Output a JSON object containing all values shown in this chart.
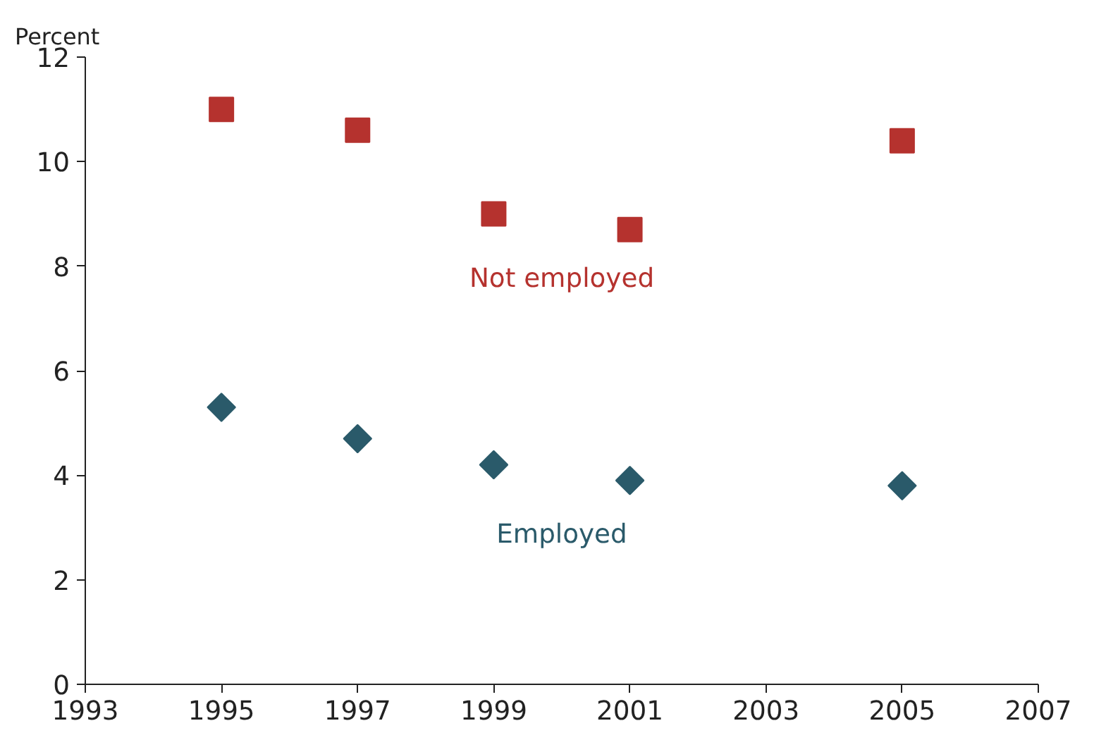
{
  "chart_data": {
    "type": "scatter",
    "ylabel": "Percent",
    "x": [
      1995,
      1997,
      1999,
      2001,
      2005
    ],
    "series": [
      {
        "name": "Not employed",
        "color": "#b5322e",
        "marker": "square",
        "values": [
          11.0,
          10.6,
          9.0,
          8.7,
          10.4
        ]
      },
      {
        "name": "Employed",
        "color": "#2a5a6a",
        "marker": "diamond",
        "values": [
          5.3,
          4.7,
          4.2,
          3.9,
          3.8
        ]
      }
    ],
    "xlim": [
      1993,
      2007
    ],
    "xticks": [
      1993,
      1995,
      1997,
      1999,
      2001,
      2003,
      2005,
      2007
    ],
    "ylim": [
      0,
      12
    ],
    "yticks": [
      0,
      2,
      4,
      6,
      8,
      10,
      12
    ]
  }
}
